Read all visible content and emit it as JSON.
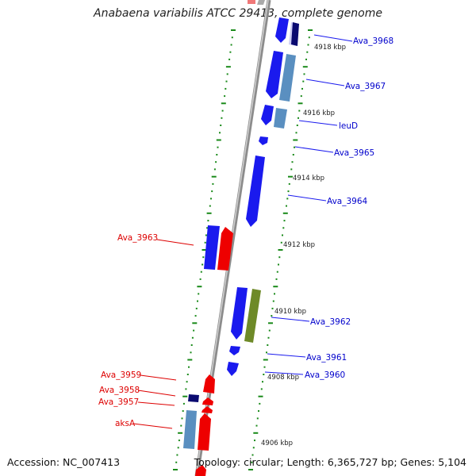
{
  "title": "Anabaena variabilis ATCC 29413, complete genome",
  "footer": {
    "accession": "Accession: NC_007413",
    "summary": "Topology: circular; Length: 6,365,727 bp; Genes: 5,104"
  },
  "colors": {
    "blue_gene": "#1a1aee",
    "steel_gene": "#5a8fc0",
    "red_gene": "#ee0000",
    "green_gene": "#6e8a28",
    "navy_gene": "#0a0a70",
    "backbone": "#8c8c8c",
    "tick_green": "#1a8a1a"
  },
  "position_labels": [
    "4918 kbp",
    "4916 kbp",
    "4914 kbp",
    "4912 kbp",
    "4910 kbp",
    "4908 kbp",
    "4906 kbp"
  ],
  "gene_labels": [
    "Ava_3968",
    "Ava_3967",
    "leuD",
    "Ava_3965",
    "Ava_3964",
    "Ava_3963",
    "Ava_3962",
    "Ava_3961",
    "Ava_3960",
    "Ava_3959",
    "Ava_3958",
    "Ava_3957",
    "aksA"
  ]
}
